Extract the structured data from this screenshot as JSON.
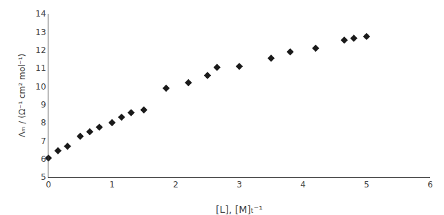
{
  "chart_data": {
    "type": "scatter",
    "x": [
      0.0,
      0.15,
      0.3,
      0.5,
      0.65,
      0.8,
      1.0,
      1.15,
      1.3,
      1.5,
      1.85,
      2.2,
      2.5,
      2.65,
      3.0,
      3.5,
      3.8,
      4.2,
      4.65,
      4.8,
      5.0
    ],
    "values": [
      6.05,
      6.45,
      6.7,
      7.25,
      7.5,
      7.75,
      8.0,
      8.3,
      8.55,
      8.7,
      9.9,
      10.2,
      10.6,
      11.05,
      11.1,
      11.55,
      11.9,
      12.1,
      12.55,
      12.65,
      12.75
    ],
    "xlabel": "[L], [M]ₜ⁻¹",
    "ylabel": "Λₘ / (Ω⁻¹ cm² mol⁻¹)",
    "xlim": [
      0,
      6
    ],
    "ylim": [
      5,
      14
    ],
    "xticks": [
      0,
      1,
      2,
      3,
      4,
      5,
      6
    ],
    "yticks": [
      5,
      6,
      7,
      8,
      9,
      10,
      11,
      12,
      13,
      14
    ],
    "color": "#1a1a1a",
    "marker": "diamond",
    "grid": false
  }
}
